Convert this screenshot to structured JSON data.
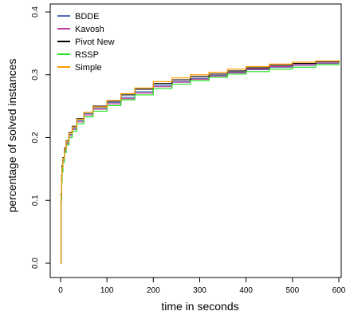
{
  "chart_data": {
    "type": "line",
    "title": "",
    "xlabel": "time in seconds",
    "ylabel": "percentage of solved instances",
    "xlim": [
      0,
      600
    ],
    "ylim": [
      0,
      0.4
    ],
    "xticks": [
      0,
      100,
      200,
      300,
      400,
      500,
      600
    ],
    "yticks": [
      0.0,
      0.1,
      0.2,
      0.3,
      0.4
    ],
    "ytick_labels": [
      "0.0",
      "0.1",
      "0.2",
      "0.3",
      "0.4"
    ],
    "grid": false,
    "legend_position": "top-left",
    "series": [
      {
        "name": "BDDE",
        "color": "#4a6fb5",
        "x": [
          0,
          1,
          2,
          3,
          5,
          8,
          12,
          18,
          25,
          35,
          50,
          70,
          100,
          130,
          160,
          200,
          240,
          280,
          320,
          360,
          400,
          450,
          500,
          550,
          600
        ],
        "y": [
          0,
          0.105,
          0.135,
          0.15,
          0.165,
          0.18,
          0.192,
          0.205,
          0.215,
          0.227,
          0.238,
          0.247,
          0.256,
          0.264,
          0.273,
          0.283,
          0.289,
          0.294,
          0.299,
          0.304,
          0.308,
          0.312,
          0.315,
          0.318,
          0.32
        ]
      },
      {
        "name": "Kavosh",
        "color": "#c0389a",
        "x": [
          0,
          1,
          2,
          3,
          5,
          8,
          12,
          18,
          25,
          35,
          50,
          70,
          100,
          130,
          160,
          200,
          240,
          280,
          320,
          360,
          400,
          450,
          500,
          550,
          600
        ],
        "y": [
          0,
          0.1,
          0.13,
          0.148,
          0.163,
          0.178,
          0.19,
          0.203,
          0.213,
          0.225,
          0.236,
          0.245,
          0.254,
          0.262,
          0.271,
          0.281,
          0.288,
          0.293,
          0.298,
          0.303,
          0.309,
          0.313,
          0.316,
          0.319,
          0.321
        ]
      },
      {
        "name": "Pivot New",
        "color": "#000000",
        "x": [
          0,
          1,
          2,
          3,
          5,
          8,
          12,
          18,
          25,
          35,
          50,
          70,
          100,
          130,
          160,
          200,
          240,
          280,
          320,
          360,
          400,
          450,
          500,
          550,
          600
        ],
        "y": [
          0,
          0.11,
          0.14,
          0.155,
          0.168,
          0.183,
          0.195,
          0.208,
          0.218,
          0.23,
          0.24,
          0.25,
          0.258,
          0.268,
          0.277,
          0.286,
          0.292,
          0.297,
          0.301,
          0.306,
          0.311,
          0.315,
          0.318,
          0.321,
          0.322
        ]
      },
      {
        "name": "RSSP",
        "color": "#22e022",
        "x": [
          0,
          1,
          2,
          3,
          5,
          8,
          12,
          18,
          25,
          35,
          50,
          70,
          100,
          130,
          160,
          200,
          240,
          280,
          320,
          360,
          400,
          450,
          500,
          550,
          600
        ],
        "y": [
          0,
          0.098,
          0.128,
          0.145,
          0.16,
          0.176,
          0.188,
          0.2,
          0.21,
          0.222,
          0.233,
          0.242,
          0.251,
          0.26,
          0.268,
          0.278,
          0.285,
          0.291,
          0.296,
          0.301,
          0.305,
          0.309,
          0.312,
          0.316,
          0.319
        ]
      },
      {
        "name": "Simple",
        "color": "#ff9a00",
        "x": [
          0,
          1,
          2,
          3,
          5,
          8,
          12,
          18,
          25,
          35,
          50,
          70,
          100,
          130,
          160,
          200,
          240,
          280,
          320,
          360,
          400,
          450,
          500,
          550,
          600
        ],
        "y": [
          0,
          0.108,
          0.138,
          0.153,
          0.167,
          0.182,
          0.194,
          0.207,
          0.217,
          0.229,
          0.24,
          0.249,
          0.259,
          0.27,
          0.279,
          0.289,
          0.295,
          0.3,
          0.304,
          0.309,
          0.313,
          0.317,
          0.32,
          0.322,
          0.324
        ]
      }
    ]
  }
}
